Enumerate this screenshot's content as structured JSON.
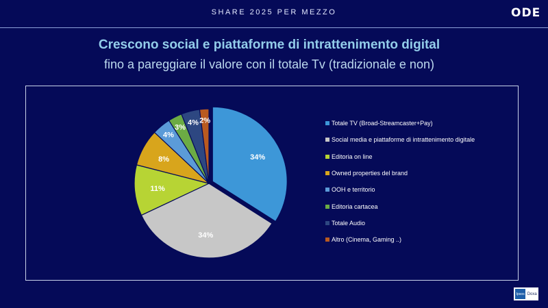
{
  "header": {
    "section_title": "SHARE 2025 PER MEZZO",
    "logo_text": "ODE"
  },
  "headline": "Crescono social e piattaforme di intrattenimento digital",
  "subheadline": "fino a pareggiare il valore con il totale Tv (tradizionale e non)",
  "footer": {
    "badge_left": "Ipsos",
    "badge_right": "Doxa"
  },
  "chart_data": {
    "type": "pie",
    "title": "",
    "legend_position": "right",
    "slices": [
      {
        "label": "Totale TV (Broad-Streamcaster+Pay)",
        "value": 34,
        "display": "34%",
        "color": "#3d97d8"
      },
      {
        "label": "Social media e piattaforme di intrattenimento digitale",
        "value": 34,
        "display": "34%",
        "color": "#c7c7c7"
      },
      {
        "label": "Editoria on line",
        "value": 11,
        "display": "11%",
        "color": "#b7d434"
      },
      {
        "label": "Owned properties del brand",
        "value": 8,
        "display": "8%",
        "color": "#d8a51c"
      },
      {
        "label": "OOH e territorio",
        "value": 4,
        "display": "4%",
        "color": "#5b9bd8"
      },
      {
        "label": "Editoria cartacea",
        "value": 3,
        "display": "3%",
        "color": "#6cab44"
      },
      {
        "label": "Totale Audio",
        "value": 4,
        "display": "4%",
        "color": "#2d4781"
      },
      {
        "label": "Altro (Cinema, Gaming ..)",
        "value": 2,
        "display": "2%",
        "color": "#b95a20"
      }
    ]
  }
}
